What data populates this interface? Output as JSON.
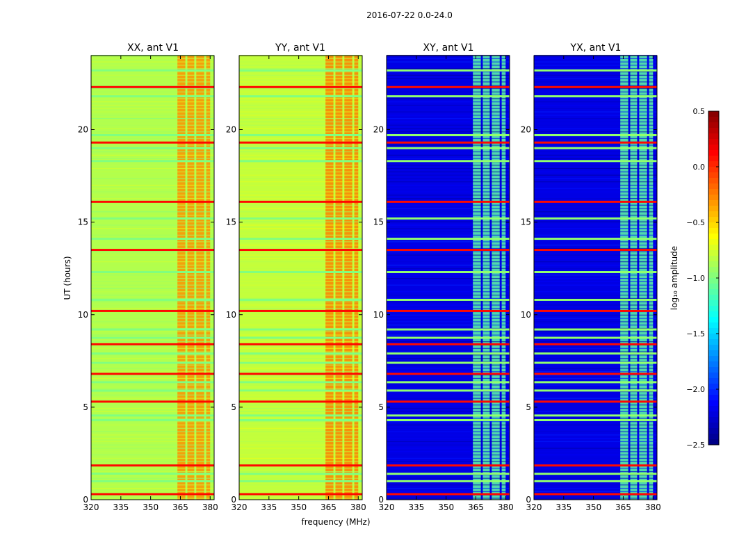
{
  "figure": {
    "suptitle": "2016-07-22 0.0-24.0",
    "xlabel": "frequency (MHz)",
    "ylabel": "UT (hours)"
  },
  "chart_data": {
    "type": "heatmap",
    "title": "2016-07-22 0.0-24.0",
    "xlabel": "frequency (MHz)",
    "ylabel": "UT (hours)",
    "xlim": [
      320,
      382
    ],
    "ylim": [
      0,
      24
    ],
    "xticks": [
      "320",
      "335",
      "350",
      "365",
      "380"
    ],
    "xtick_values": [
      320,
      335,
      350,
      365,
      380
    ],
    "yticks": [
      "0",
      "5",
      "10",
      "15",
      "20"
    ],
    "ytick_values": [
      0,
      5,
      10,
      15,
      20
    ],
    "panels": [
      {
        "title": "XX, ant V1",
        "base_level": -0.85,
        "rfi_level": -0.3
      },
      {
        "title": "YY, ant V1",
        "base_level": -0.8,
        "rfi_level": -0.25
      },
      {
        "title": "XY, ant V1",
        "base_level": -2.2,
        "rfi_level": -1.1
      },
      {
        "title": "YX, ant V1",
        "base_level": -2.2,
        "rfi_level": -1.1
      }
    ],
    "rfi_freq_bands_mhz": [
      [
        363.5,
        367.5
      ],
      [
        368.5,
        372
      ],
      [
        373,
        377
      ],
      [
        378,
        380
      ]
    ],
    "flagged_times_hours": [
      0.3,
      1.0,
      1.4,
      1.85,
      4.3,
      4.55,
      5.3,
      5.9,
      6.35,
      6.8,
      7.4,
      7.9,
      8.4,
      8.75,
      9.2,
      10.2,
      10.8,
      12.3,
      13.5,
      14.1,
      15.2,
      16.1,
      18.3,
      19.0,
      19.3,
      19.7,
      21.8,
      22.3,
      23.2
    ],
    "colorbar": {
      "label": "log₁₀ amplitude",
      "range": [
        -2.5,
        0.5
      ],
      "ticks": [
        "0.5",
        "0.0",
        "−0.5",
        "−1.0",
        "−1.5",
        "−2.0",
        "−2.5"
      ],
      "tick_values": [
        0.5,
        0.0,
        -0.5,
        -1.0,
        -1.5,
        -2.0,
        -2.5
      ],
      "colormap": "jet"
    }
  }
}
